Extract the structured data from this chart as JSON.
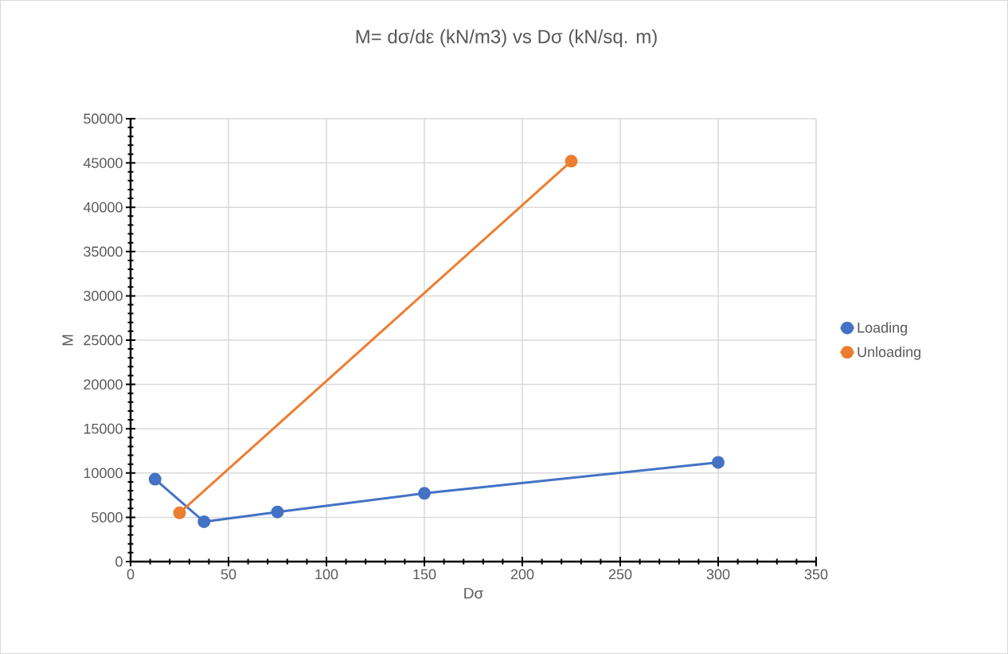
{
  "chart_data": {
    "type": "line",
    "title": "M= dσ/dε (kN/m3) vs Dσ (kN/sq. m)",
    "xlabel": "Dσ",
    "ylabel": "M",
    "series": [
      {
        "name": "Loading",
        "color": "#4472c4",
        "x": [
          12.5,
          37.5,
          75,
          150,
          300
        ],
        "values": [
          9300,
          4500,
          5600,
          7700,
          11200
        ]
      },
      {
        "name": "Unloading",
        "color": "#ed7d31",
        "x": [
          25,
          225
        ],
        "values": [
          5500,
          45200
        ]
      }
    ],
    "xlim": [
      0,
      350
    ],
    "xticks": [
      0,
      50,
      100,
      150,
      200,
      250,
      300,
      350
    ],
    "ylim": [
      0,
      50000
    ],
    "yticks": [
      0,
      5000,
      10000,
      15000,
      20000,
      25000,
      30000,
      35000,
      40000,
      45000,
      50000
    ],
    "grid": true,
    "legend": "right",
    "marker": "circle",
    "line_style": "solid"
  }
}
